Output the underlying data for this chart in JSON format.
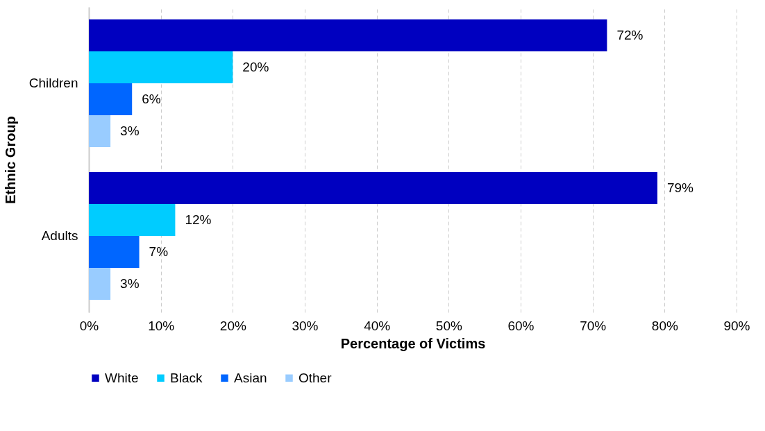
{
  "chart_data": {
    "type": "bar",
    "orientation": "horizontal",
    "xlabel": "Percentage of Victims",
    "ylabel": "Ethnic Group",
    "categories": [
      "Children",
      "Adults"
    ],
    "series": [
      {
        "name": "White",
        "color": "#0000c0",
        "values": [
          72,
          79
        ],
        "value_labels": [
          "72%",
          "79%"
        ]
      },
      {
        "name": "Black",
        "color": "#00ccff",
        "values": [
          20,
          12
        ],
        "value_labels": [
          "20%",
          "12%"
        ]
      },
      {
        "name": "Asian",
        "color": "#0066ff",
        "values": [
          6,
          7
        ],
        "value_labels": [
          "6%",
          "7%"
        ]
      },
      {
        "name": "Other",
        "color": "#99ccff",
        "values": [
          3,
          3
        ],
        "value_labels": [
          "3%",
          "3%"
        ]
      }
    ],
    "xlim": [
      0,
      90
    ],
    "xticks": [
      {
        "value": 0,
        "label": "0%"
      },
      {
        "value": 10,
        "label": "10%"
      },
      {
        "value": 20,
        "label": "20%"
      },
      {
        "value": 30,
        "label": "30%"
      },
      {
        "value": 40,
        "label": "40%"
      },
      {
        "value": 50,
        "label": "50%"
      },
      {
        "value": 60,
        "label": "60%"
      },
      {
        "value": 70,
        "label": "70%"
      },
      {
        "value": 80,
        "label": "80%"
      },
      {
        "value": 90,
        "label": "90%"
      }
    ],
    "grid": "x",
    "legend": "bottom"
  }
}
